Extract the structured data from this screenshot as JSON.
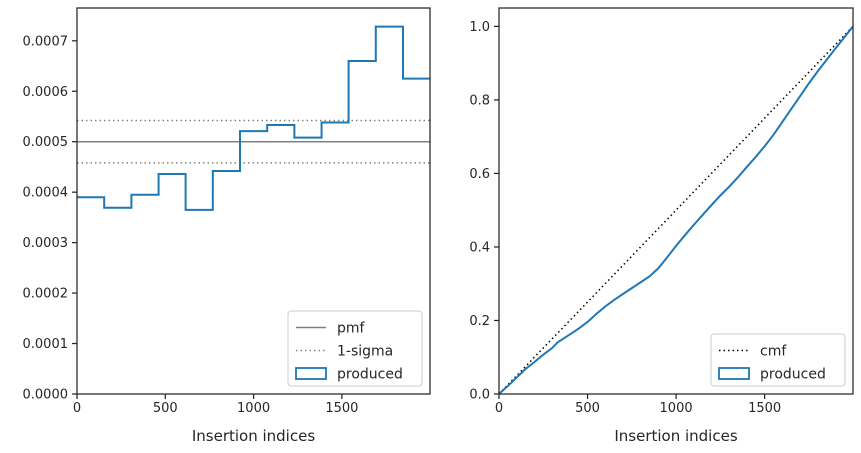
{
  "chart_data": [
    {
      "type": "step",
      "title": "",
      "xlabel": "Insertion indices",
      "ylabel": "",
      "xlim": [
        0,
        1999
      ],
      "ylim": [
        0,
        0.000765
      ],
      "xticks": [
        0,
        500,
        1000,
        1500
      ],
      "xtick_labels": [
        "0",
        "500",
        "1000",
        "1500"
      ],
      "yticks": [
        0,
        0.0001,
        0.0002,
        0.0003,
        0.0004,
        0.0005,
        0.0006,
        0.0007
      ],
      "ytick_labels": [
        "0.0000",
        "0.0001",
        "0.0002",
        "0.0003",
        "0.0004",
        "0.0005",
        "0.0006",
        "0.0007"
      ],
      "grid": false,
      "legend_position": "lower-right",
      "reference_lines": [
        {
          "name": "pmf",
          "y": 0.0005,
          "style": "solid",
          "color": "#808080"
        },
        {
          "name": "1-sigma",
          "y": 0.000542,
          "style": "dotted",
          "color": "#808080"
        },
        {
          "name": "1-sigma",
          "y": 0.000458,
          "style": "dotted",
          "color": "#808080"
        }
      ],
      "series": [
        {
          "name": "produced",
          "color": "#1f77b4",
          "bin_edges": [
            0,
            154,
            308,
            462,
            615,
            769,
            923,
            1077,
            1231,
            1385,
            1538,
            1692,
            1846,
            1999
          ],
          "values": [
            0.00039,
            0.000369,
            0.000395,
            0.000436,
            0.000365,
            0.000442,
            0.000521,
            0.000533,
            0.000508,
            0.000538,
            0.00066,
            0.000728,
            0.000625
          ]
        }
      ],
      "legend": [
        {
          "label": "pmf",
          "kind": "solid-line",
          "color": "#808080"
        },
        {
          "label": "1-sigma",
          "kind": "dotted-line",
          "color": "#808080"
        },
        {
          "label": "produced",
          "kind": "patch",
          "color": "#1f77b4"
        }
      ]
    },
    {
      "type": "step",
      "title": "",
      "xlabel": "Insertion indices",
      "ylabel": "",
      "xlim": [
        0,
        1999
      ],
      "ylim": [
        0,
        1.05
      ],
      "xticks": [
        0,
        500,
        1000,
        1500
      ],
      "xtick_labels": [
        "0",
        "500",
        "1000",
        "1500"
      ],
      "yticks": [
        0,
        0.2,
        0.4,
        0.6,
        0.8,
        1.0
      ],
      "ytick_labels": [
        "0.0",
        "0.2",
        "0.4",
        "0.6",
        "0.8",
        "1.0"
      ],
      "grid": false,
      "legend_position": "lower-right",
      "series": [
        {
          "name": "cmf",
          "style": "dotted",
          "color": "#000000",
          "x": [
            0,
            1999
          ],
          "y": [
            0,
            1.0
          ]
        },
        {
          "name": "produced",
          "color": "#1f77b4",
          "x": [
            0,
            50,
            100,
            150,
            200,
            250,
            300,
            330,
            400,
            450,
            500,
            550,
            600,
            650,
            700,
            750,
            800,
            850,
            900,
            950,
            1000,
            1050,
            1100,
            1150,
            1200,
            1250,
            1300,
            1350,
            1400,
            1450,
            1500,
            1550,
            1600,
            1650,
            1700,
            1750,
            1800,
            1850,
            1900,
            1950,
            1999
          ],
          "y": [
            0,
            0.022,
            0.045,
            0.068,
            0.087,
            0.107,
            0.125,
            0.14,
            0.162,
            0.178,
            0.196,
            0.218,
            0.238,
            0.256,
            0.272,
            0.288,
            0.304,
            0.32,
            0.342,
            0.372,
            0.403,
            0.432,
            0.46,
            0.487,
            0.514,
            0.54,
            0.564,
            0.59,
            0.618,
            0.645,
            0.674,
            0.705,
            0.74,
            0.775,
            0.81,
            0.845,
            0.878,
            0.909,
            0.94,
            0.97,
            1.0
          ]
        }
      ],
      "legend": [
        {
          "label": "cmf",
          "kind": "dotted-line",
          "color": "#000000"
        },
        {
          "label": "produced",
          "kind": "patch",
          "color": "#1f77b4"
        }
      ]
    }
  ]
}
